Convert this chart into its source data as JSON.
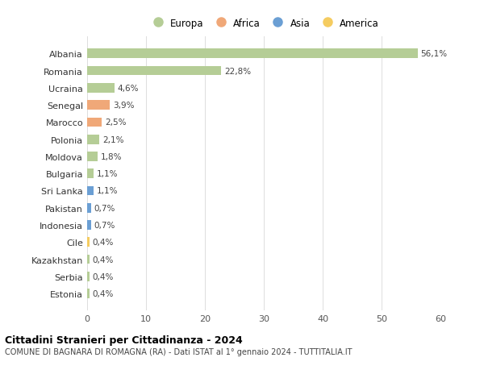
{
  "countries": [
    "Albania",
    "Romania",
    "Ucraina",
    "Senegal",
    "Marocco",
    "Polonia",
    "Moldova",
    "Bulgaria",
    "Sri Lanka",
    "Pakistan",
    "Indonesia",
    "Cile",
    "Kazakhstan",
    "Serbia",
    "Estonia"
  ],
  "values": [
    56.1,
    22.8,
    4.6,
    3.9,
    2.5,
    2.1,
    1.8,
    1.1,
    1.1,
    0.7,
    0.7,
    0.4,
    0.4,
    0.4,
    0.4
  ],
  "labels": [
    "56,1%",
    "22,8%",
    "4,6%",
    "3,9%",
    "2,5%",
    "2,1%",
    "1,8%",
    "1,1%",
    "1,1%",
    "0,7%",
    "0,7%",
    "0,4%",
    "0,4%",
    "0,4%",
    "0,4%"
  ],
  "continents": [
    "Europa",
    "Europa",
    "Europa",
    "Africa",
    "Africa",
    "Europa",
    "Europa",
    "Europa",
    "Asia",
    "Asia",
    "Asia",
    "America",
    "Europa",
    "Europa",
    "Europa"
  ],
  "colors": {
    "Europa": "#b5cd96",
    "Africa": "#f0a878",
    "Asia": "#6b9fd4",
    "America": "#f5cc60"
  },
  "legend_order": [
    "Europa",
    "Africa",
    "Asia",
    "America"
  ],
  "title": "Cittadini Stranieri per Cittadinanza - 2024",
  "subtitle": "COMUNE DI BAGNARA DI ROMAGNA (RA) - Dati ISTAT al 1° gennaio 2024 - TUTTITALIA.IT",
  "xlim": [
    0,
    60
  ],
  "xticks": [
    0,
    10,
    20,
    30,
    40,
    50,
    60
  ],
  "background_color": "#ffffff"
}
